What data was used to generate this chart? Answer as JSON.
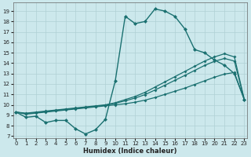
{
  "xlabel": "Humidex (Indice chaleur)",
  "bg_color": "#cce8ec",
  "grid_color": "#b0d0d4",
  "line_color": "#1a7070",
  "x_ticks": [
    0,
    1,
    2,
    3,
    4,
    5,
    6,
    7,
    8,
    9,
    10,
    11,
    12,
    13,
    14,
    15,
    16,
    17,
    18,
    19,
    20,
    21,
    22,
    23
  ],
  "y_ticks": [
    7,
    8,
    9,
    10,
    11,
    12,
    13,
    14,
    15,
    16,
    17,
    18,
    19
  ],
  "ylim": [
    6.8,
    19.8
  ],
  "xlim": [
    -0.3,
    23.3
  ],
  "series": [
    {
      "x": [
        0,
        1,
        2,
        3,
        4,
        5,
        6,
        7,
        8,
        9,
        10,
        11,
        12,
        13,
        14,
        15,
        16,
        17,
        18,
        19,
        20,
        21,
        22,
        23
      ],
      "y": [
        9.3,
        8.8,
        8.9,
        8.3,
        8.5,
        8.5,
        7.7,
        7.2,
        7.6,
        8.6,
        12.3,
        18.5,
        17.8,
        18.0,
        19.2,
        19.0,
        18.5,
        17.3,
        15.3,
        15.0,
        14.3,
        13.8,
        13.0,
        10.5
      ]
    },
    {
      "x": [
        0,
        1,
        2,
        3,
        4,
        5,
        6,
        7,
        8,
        9,
        10,
        11,
        12,
        13,
        14,
        15,
        16,
        17,
        18,
        19,
        20,
        21,
        22,
        23
      ],
      "y": [
        9.3,
        9.2,
        9.3,
        9.4,
        9.5,
        9.6,
        9.7,
        9.8,
        9.9,
        10.0,
        10.2,
        10.5,
        10.8,
        11.2,
        11.7,
        12.2,
        12.7,
        13.2,
        13.7,
        14.2,
        14.6,
        14.9,
        14.6,
        10.5
      ]
    },
    {
      "x": [
        0,
        1,
        2,
        3,
        4,
        5,
        6,
        7,
        8,
        9,
        10,
        11,
        12,
        13,
        14,
        15,
        16,
        17,
        18,
        19,
        20,
        21,
        22,
        23
      ],
      "y": [
        9.3,
        9.15,
        9.25,
        9.35,
        9.45,
        9.55,
        9.65,
        9.75,
        9.85,
        9.95,
        10.15,
        10.38,
        10.65,
        10.98,
        11.42,
        11.88,
        12.35,
        12.82,
        13.3,
        13.78,
        14.18,
        14.45,
        14.2,
        10.5
      ]
    },
    {
      "x": [
        0,
        1,
        2,
        3,
        4,
        5,
        6,
        7,
        8,
        9,
        10,
        11,
        12,
        13,
        14,
        15,
        16,
        17,
        18,
        19,
        20,
        21,
        22,
        23
      ],
      "y": [
        9.3,
        9.1,
        9.2,
        9.3,
        9.4,
        9.5,
        9.6,
        9.7,
        9.8,
        9.9,
        10.0,
        10.1,
        10.25,
        10.45,
        10.7,
        11.0,
        11.3,
        11.6,
        11.95,
        12.3,
        12.65,
        12.95,
        13.1,
        10.5
      ]
    }
  ]
}
